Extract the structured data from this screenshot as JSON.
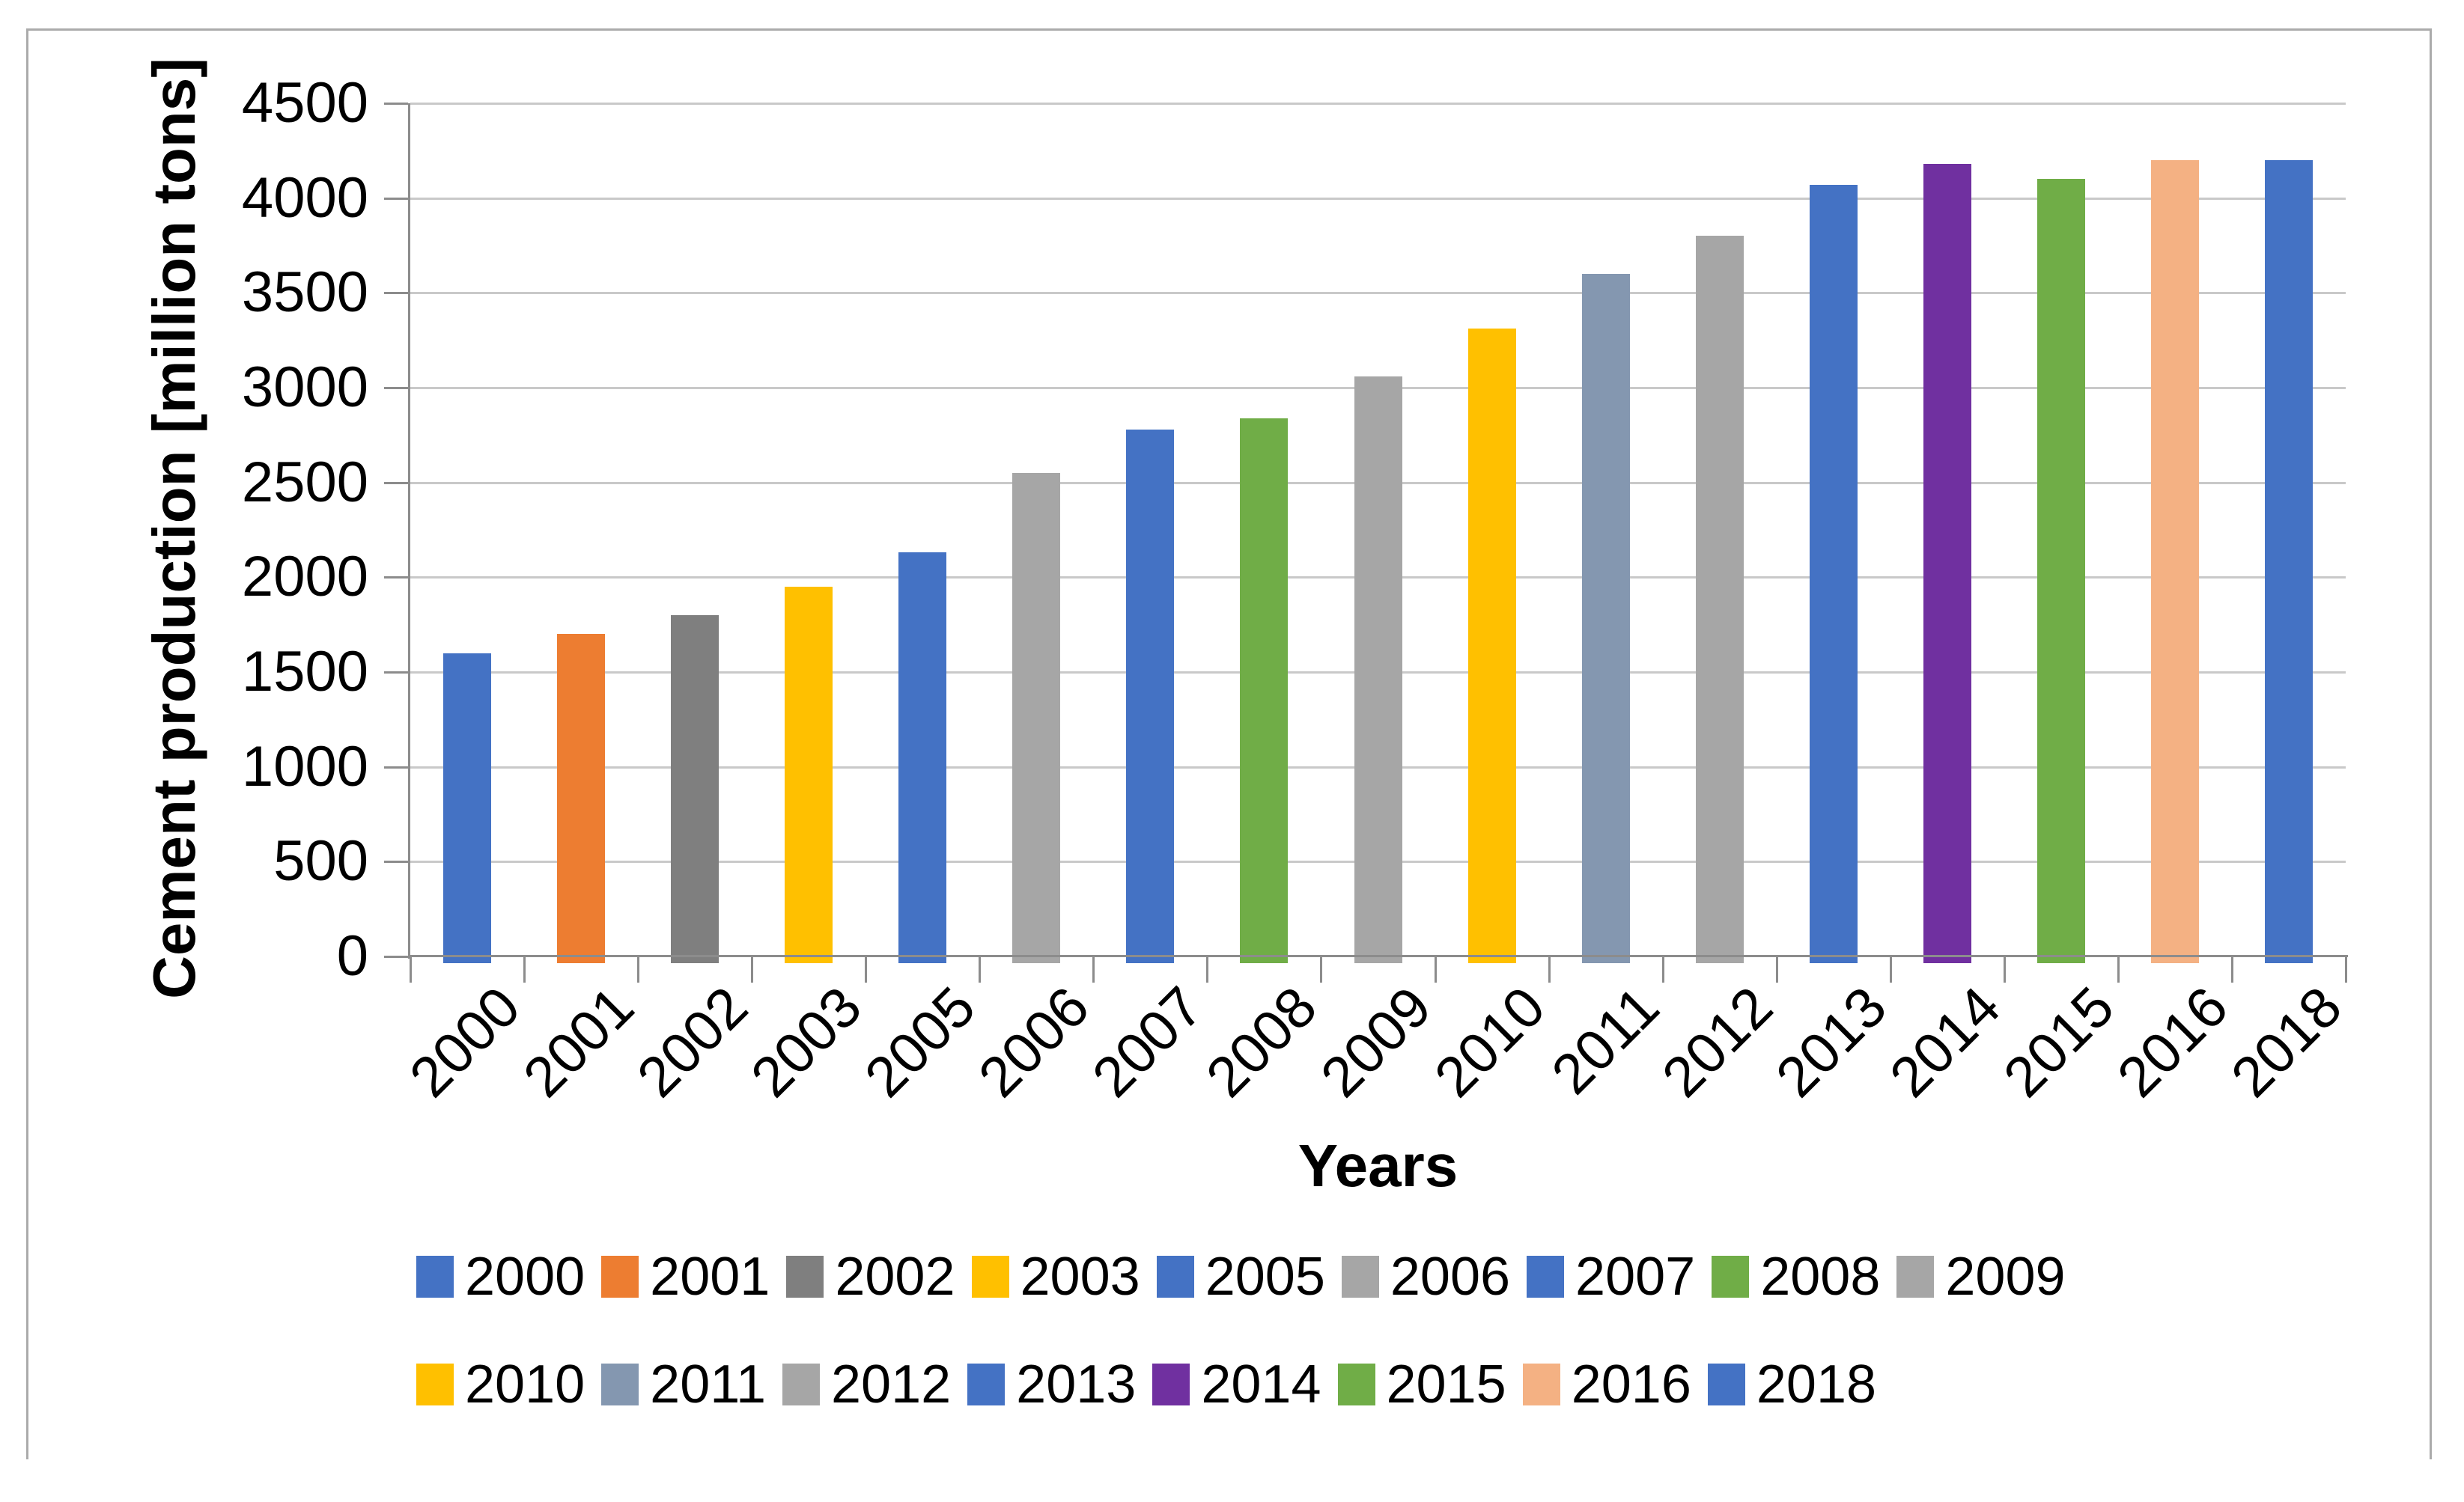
{
  "chart_data": {
    "type": "bar",
    "title": "",
    "xlabel": "Years",
    "ylabel": "Cement production [million tons]",
    "ylim": [
      0,
      4500
    ],
    "ytick_step": 500,
    "grid": true,
    "legend_position": "bottom",
    "legend_wrap_at": 9,
    "categories": [
      "2000",
      "2001",
      "2002",
      "2003",
      "2005",
      "2006",
      "2007",
      "2008",
      "2009",
      "2010",
      "2011",
      "2012",
      "2013",
      "2014",
      "2015",
      "2016",
      "2018"
    ],
    "values": [
      1600,
      1700,
      1800,
      1950,
      2130,
      2550,
      2780,
      2840,
      3060,
      3310,
      3600,
      3800,
      4070,
      4180,
      4100,
      4200,
      4200
    ],
    "bar_colors": [
      "#4472c4",
      "#ed7d31",
      "#7f7f7f",
      "#ffc000",
      "#4472c4",
      "#a6a6a6",
      "#4472c4",
      "#70ad47",
      "#a6a6a6",
      "#ffc000",
      "#8497b0",
      "#a6a6a6",
      "#4472c4",
      "#7030a0",
      "#70ad47",
      "#f4b183",
      "#4472c4"
    ]
  },
  "ui_colors": {
    "gridline": "#c9c9c9",
    "axis_line": "#8c8c8c",
    "outer_border": "#ababab",
    "text": "#000000",
    "background": "#ffffff"
  }
}
